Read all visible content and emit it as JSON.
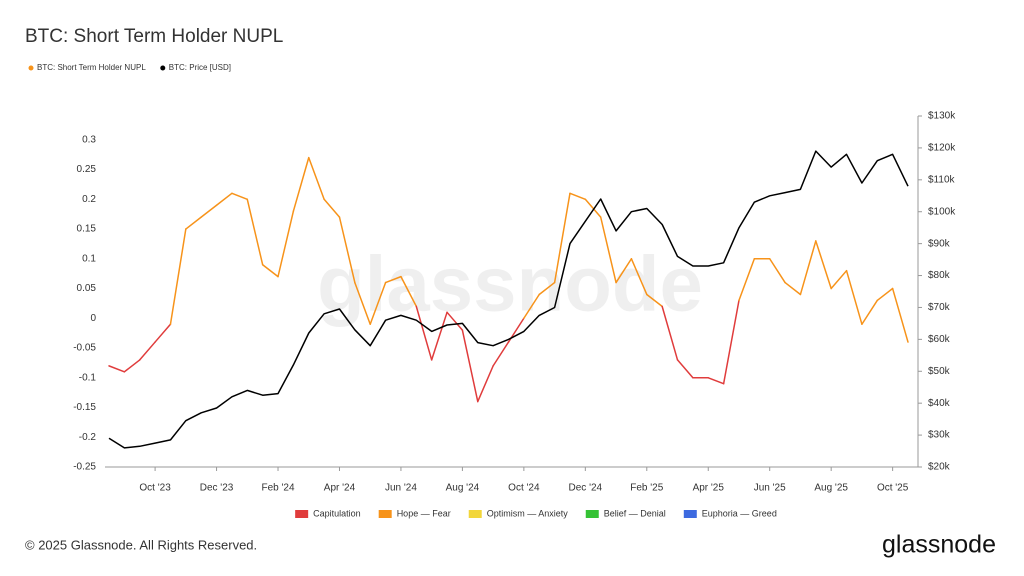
{
  "chart_data": {
    "type": "line",
    "title": "BTC: Short Term Holder NUPL",
    "watermark": "glassnode",
    "categories": [
      null,
      null,
      null,
      "Oct '23",
      null,
      null,
      null,
      "Dec '23",
      null,
      null,
      null,
      "Feb '24",
      null,
      null,
      null,
      "Apr '24",
      null,
      null,
      null,
      "Jun '24",
      null,
      null,
      null,
      "Aug '24",
      null,
      null,
      null,
      "Oct '24",
      null,
      null,
      null,
      "Dec '24",
      null,
      null,
      null,
      "Feb '25",
      null,
      null,
      null,
      "Apr '25",
      null,
      null,
      null,
      "Jun '25",
      null,
      null,
      null,
      "Aug '25",
      null,
      null,
      null,
      "Oct '25",
      null
    ],
    "series": [
      {
        "name": "BTC: Short Term Holder NUPL",
        "color": "#f7931a",
        "zoned": true,
        "values": [
          -0.08,
          -0.09,
          -0.07,
          -0.04,
          -0.01,
          0.15,
          0.17,
          0.19,
          0.21,
          0.2,
          0.09,
          0.07,
          0.18,
          0.27,
          0.2,
          0.17,
          0.06,
          -0.01,
          0.06,
          0.07,
          0.02,
          -0.07,
          0.01,
          -0.02,
          -0.14,
          -0.08,
          -0.04,
          0.0,
          0.04,
          0.06,
          0.21,
          0.2,
          0.17,
          0.06,
          0.1,
          0.04,
          0.02,
          -0.07,
          -0.1,
          -0.1,
          -0.11,
          0.03,
          0.1,
          0.1,
          0.06,
          0.04,
          0.13,
          0.05,
          0.08,
          -0.01,
          0.03,
          0.05,
          -0.04
        ]
      },
      {
        "name": "BTC: Price [USD]",
        "color": "#000000",
        "axis": "y2",
        "values": [
          29000,
          26000,
          26500,
          27500,
          28500,
          34500,
          37000,
          38500,
          42000,
          44000,
          42500,
          43000,
          52000,
          62000,
          68000,
          69500,
          63000,
          58000,
          66000,
          67500,
          66000,
          62500,
          64500,
          65000,
          59000,
          58000,
          60000,
          62500,
          67500,
          70000,
          90000,
          97000,
          104000,
          94000,
          100000,
          101000,
          96000,
          86000,
          83000,
          83000,
          84000,
          95000,
          103000,
          105000,
          106000,
          107000,
          119000,
          114000,
          118000,
          109000,
          116000,
          118000,
          108000
        ]
      }
    ],
    "zones": [
      {
        "name": "Capitulation",
        "color": "#e03c3c",
        "min": -1
      },
      {
        "name": "Hope — Fear",
        "color": "#f7931a",
        "min": 0
      },
      {
        "name": "Optimism — Anxiety",
        "color": "#f2d63b",
        "min": 0.25
      },
      {
        "name": "Belief — Denial",
        "color": "#35c235",
        "min": 0.5
      },
      {
        "name": "Euphoria — Greed",
        "color": "#3d6ae0",
        "min": 0.75
      }
    ],
    "ylim": [
      -0.25,
      0.34
    ],
    "yticks": [
      -0.25,
      -0.2,
      -0.15,
      -0.1,
      -0.05,
      0,
      0.05,
      0.1,
      0.15,
      0.2,
      0.25,
      0.3
    ],
    "y2lim": [
      20000,
      130000
    ],
    "y2ticks": [
      {
        "value": 20000,
        "label": "$20k"
      },
      {
        "value": 30000,
        "label": "$30k"
      },
      {
        "value": 40000,
        "label": "$40k"
      },
      {
        "value": 50000,
        "label": "$50k"
      },
      {
        "value": 60000,
        "label": "$60k"
      },
      {
        "value": 70000,
        "label": "$70k"
      },
      {
        "value": 80000,
        "label": "$80k"
      },
      {
        "value": 90000,
        "label": "$90k"
      },
      {
        "value": 100000,
        "label": "$100k"
      },
      {
        "value": 110000,
        "label": "$110k"
      },
      {
        "value": 120000,
        "label": "$120k"
      },
      {
        "value": 130000,
        "label": "$130k"
      }
    ],
    "grid": false,
    "legend": "top-left"
  },
  "footer": {
    "copyright": "© 2025 Glassnode. All Rights Reserved.",
    "logo": "glassnode"
  }
}
